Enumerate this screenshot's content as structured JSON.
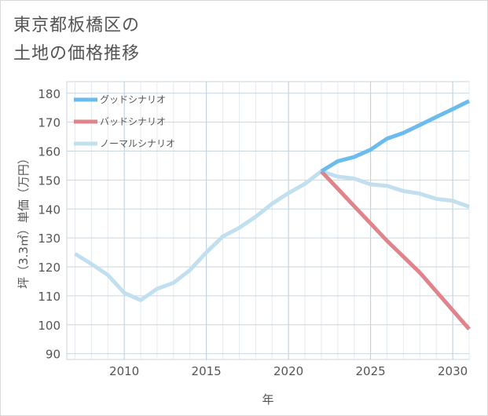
{
  "title": {
    "line1": "東京都板橋区の",
    "line2": "土地の価格推移"
  },
  "chart_data": {
    "type": "line",
    "xlabel": "年",
    "ylabel": "坪（3.3㎡）単価（万円）",
    "xlim": [
      2006.5,
      2031
    ],
    "ylim": [
      88,
      184
    ],
    "xticks": [
      2010,
      2015,
      2020,
      2025,
      2030
    ],
    "yticks": [
      90,
      100,
      110,
      120,
      130,
      140,
      150,
      160,
      170,
      180
    ],
    "grid": true,
    "legend_position": "top-left",
    "series": [
      {
        "name": "グッドシナリオ",
        "color": "#6bbbef",
        "x": [
          2022,
          2023,
          2024,
          2025,
          2026,
          2027,
          2028,
          2029,
          2030,
          2031
        ],
        "y": [
          153.0,
          156.5,
          158.0,
          160.5,
          164.3,
          166.3,
          169.0,
          171.8,
          174.5,
          177.3
        ]
      },
      {
        "name": "バッドシナリオ",
        "color": "#e0838a",
        "x": [
          2022,
          2023,
          2024,
          2025,
          2026,
          2027,
          2028,
          2029,
          2030,
          2031
        ],
        "y": [
          153.0,
          147.0,
          141.0,
          135.0,
          129.0,
          123.5,
          118.0,
          111.5,
          105.0,
          98.5
        ]
      },
      {
        "name": "ノーマルシナリオ",
        "color": "#c2dff0",
        "x": [
          2007,
          2008,
          2009,
          2010,
          2011,
          2012,
          2013,
          2014,
          2015,
          2016,
          2017,
          2018,
          2019,
          2020,
          2021,
          2022,
          2023,
          2024,
          2025,
          2026,
          2027,
          2028,
          2029,
          2030,
          2031
        ],
        "y": [
          124.5,
          121.0,
          117.2,
          111.0,
          108.5,
          112.4,
          114.5,
          118.9,
          125.0,
          130.5,
          133.5,
          137.3,
          141.8,
          145.5,
          148.7,
          153.0,
          151.2,
          150.5,
          148.5,
          148.0,
          146.2,
          145.3,
          143.5,
          142.8,
          140.8
        ]
      }
    ]
  }
}
